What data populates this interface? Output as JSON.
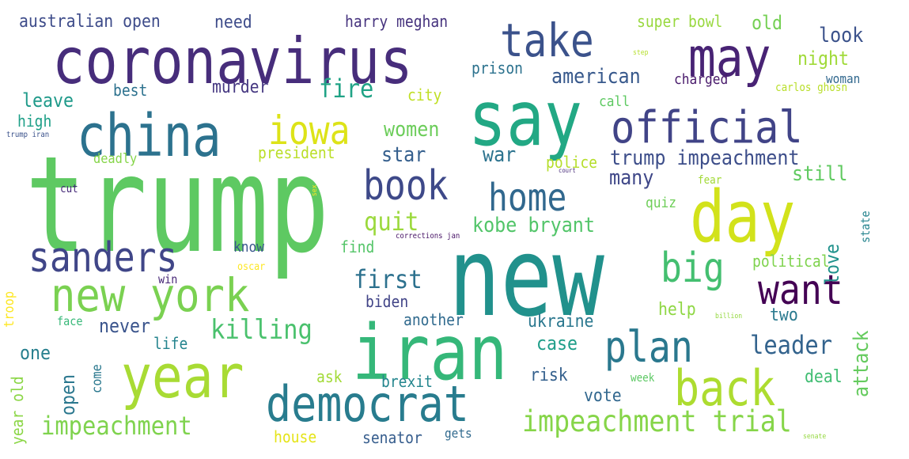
{
  "words": [
    {
      "text": "trump",
      "color": "#5ec962"
    },
    {
      "text": "new",
      "color": "#21918c"
    },
    {
      "text": "coronavirus",
      "color": "#472d7b"
    },
    {
      "text": "say",
      "color": "#22a884"
    },
    {
      "text": "iran",
      "color": "#35b779"
    },
    {
      "text": "day",
      "color": "#d2e21b"
    },
    {
      "text": "china",
      "color": "#2c728e"
    },
    {
      "text": "may",
      "color": "#482374"
    },
    {
      "text": "take",
      "color": "#3b528b"
    },
    {
      "text": "year",
      "color": "#a8db34"
    },
    {
      "text": "official",
      "color": "#414487"
    },
    {
      "text": "new york",
      "color": "#7ad151"
    },
    {
      "text": "democrat",
      "color": "#287c8e"
    },
    {
      "text": "back",
      "color": "#addc30"
    },
    {
      "text": "plan",
      "color": "#2a788e"
    },
    {
      "text": "book",
      "color": "#3e4989"
    },
    {
      "text": "home",
      "color": "#31688e"
    },
    {
      "text": "sanders",
      "color": "#404688"
    },
    {
      "text": "iowa",
      "color": "#dde318"
    },
    {
      "text": "want",
      "color": "#440154"
    },
    {
      "text": "big",
      "color": "#44bf70"
    },
    {
      "text": "impeachment trial",
      "color": "#86d549"
    },
    {
      "text": "impeachment",
      "color": "#7fd34e"
    },
    {
      "text": "killing",
      "color": "#4ac16d"
    },
    {
      "text": "leader",
      "color": "#33638d"
    },
    {
      "text": "fire",
      "color": "#20a386"
    },
    {
      "text": "first",
      "color": "#2d718e"
    },
    {
      "text": "trump impeachment",
      "color": "#3d4e8a"
    },
    {
      "text": "kobe bryant",
      "color": "#52c569"
    },
    {
      "text": "quit",
      "color": "#9bd93c"
    },
    {
      "text": "american",
      "color": "#38598c"
    },
    {
      "text": "women",
      "color": "#6ccd5a"
    },
    {
      "text": "star",
      "color": "#355f8d"
    },
    {
      "text": "war",
      "color": "#2c738e"
    },
    {
      "text": "still",
      "color": "#60ca60"
    },
    {
      "text": "many",
      "color": "#3f4788"
    },
    {
      "text": "attack",
      "color": "#65cb5e"
    },
    {
      "text": "love",
      "color": "#20928c"
    },
    {
      "text": "police",
      "color": "#b5de2b"
    },
    {
      "text": "case",
      "color": "#1f9e89"
    },
    {
      "text": "look",
      "color": "#3b528b"
    },
    {
      "text": "night",
      "color": "#a0da39"
    },
    {
      "text": "open",
      "color": "#2a778e"
    },
    {
      "text": "never",
      "color": "#3a548c"
    },
    {
      "text": "leave",
      "color": "#1f9a8a"
    },
    {
      "text": "murder",
      "color": "#453781"
    },
    {
      "text": "one",
      "color": "#277f8e"
    },
    {
      "text": "life",
      "color": "#25848e"
    },
    {
      "text": "another",
      "color": "#306a8e"
    },
    {
      "text": "ukraine",
      "color": "#2a778e"
    },
    {
      "text": "help",
      "color": "#8fd744"
    },
    {
      "text": "two",
      "color": "#29798e"
    },
    {
      "text": "vote",
      "color": "#31678e"
    },
    {
      "text": "risk",
      "color": "#34608d"
    },
    {
      "text": "brexit",
      "color": "#24868e"
    },
    {
      "text": "senator",
      "color": "#365d8d"
    },
    {
      "text": "house",
      "color": "#e5e419"
    },
    {
      "text": "deal",
      "color": "#40bd72"
    },
    {
      "text": "biden",
      "color": "#414487"
    },
    {
      "text": "political",
      "color": "#7fd34e"
    },
    {
      "text": "australian open",
      "color": "#3e4c8a"
    },
    {
      "text": "harry meghan",
      "color": "#46337e"
    },
    {
      "text": "super bowl",
      "color": "#98d83e"
    },
    {
      "text": "old",
      "color": "#75d054"
    },
    {
      "text": "need",
      "color": "#3e4c8a"
    },
    {
      "text": "prison",
      "color": "#2c728e"
    },
    {
      "text": "charged",
      "color": "#48196b"
    },
    {
      "text": "woman",
      "color": "#31688e"
    },
    {
      "text": "best",
      "color": "#2c718e"
    },
    {
      "text": "city",
      "color": "#c0df25"
    },
    {
      "text": "call",
      "color": "#5ec962"
    },
    {
      "text": "carlos ghosn",
      "color": "#b8de29"
    },
    {
      "text": "high",
      "color": "#1fa088"
    },
    {
      "text": "president",
      "color": "#bade28"
    },
    {
      "text": "deadly",
      "color": "#86d549"
    },
    {
      "text": "cut",
      "color": "#472c7a"
    },
    {
      "text": "know",
      "color": "#39568c"
    },
    {
      "text": "find",
      "color": "#54c568"
    },
    {
      "text": "quiz",
      "color": "#6ece58"
    },
    {
      "text": "fear",
      "color": "#a2da37"
    },
    {
      "text": "state",
      "color": "#25848e"
    },
    {
      "text": "ask",
      "color": "#a2da37"
    },
    {
      "text": "come",
      "color": "#2a788e"
    },
    {
      "text": "face",
      "color": "#37b878"
    },
    {
      "text": "troop",
      "color": "#fde725"
    },
    {
      "text": "year old",
      "color": "#8bd646"
    },
    {
      "text": "week",
      "color": "#5cc863"
    },
    {
      "text": "gets",
      "color": "#306a8e"
    },
    {
      "text": "win",
      "color": "#482878"
    },
    {
      "text": "oscar",
      "color": "#fde725"
    },
    {
      "text": "corrections jan",
      "color": "#481467"
    },
    {
      "text": "trump iran",
      "color": "#3b528b"
    },
    {
      "text": "court",
      "color": "#472c7a"
    },
    {
      "text": "sex",
      "color": "#fde725"
    },
    {
      "text": "step",
      "color": "#b5de2b"
    },
    {
      "text": "billion",
      "color": "#95d840"
    },
    {
      "text": "senate",
      "color": "#95d840"
    }
  ]
}
